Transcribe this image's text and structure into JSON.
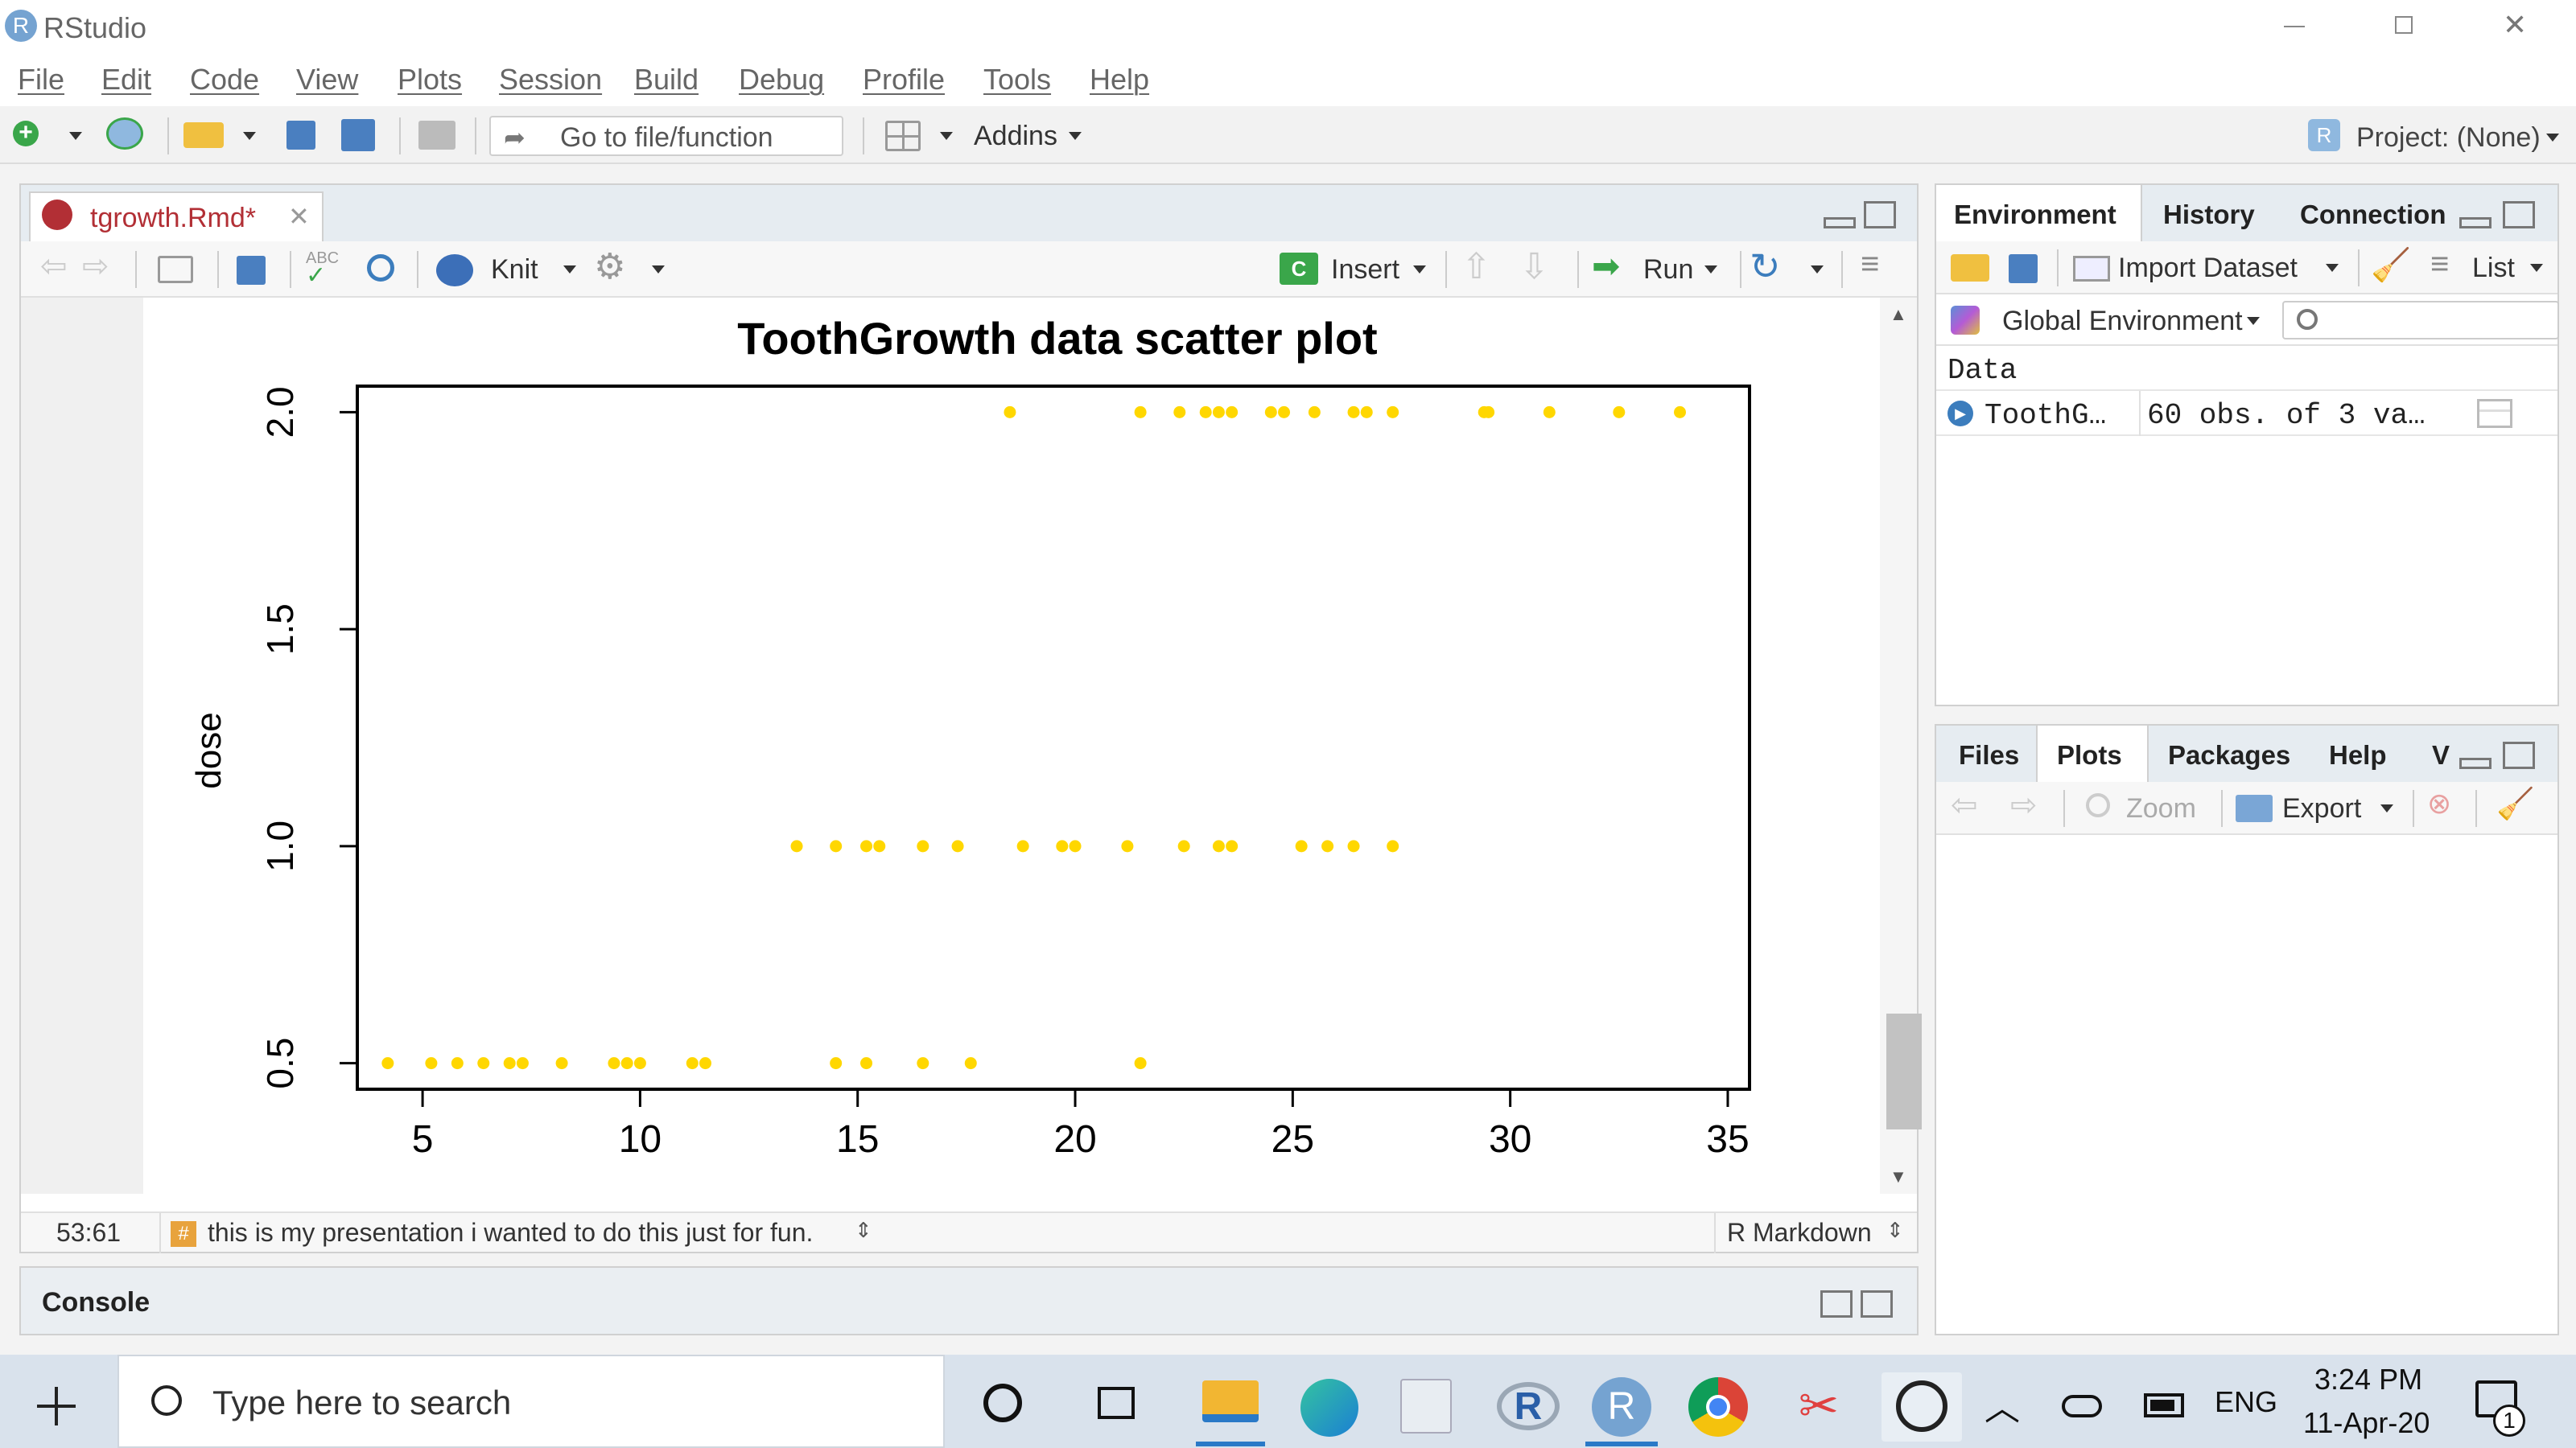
{
  "window": {
    "title": "RStudio"
  },
  "menu": [
    "File",
    "Edit",
    "Code",
    "View",
    "Plots",
    "Session",
    "Build",
    "Debug",
    "Profile",
    "Tools",
    "Help"
  ],
  "toolbar": {
    "goto_placeholder": "Go to file/function",
    "addins": "Addins",
    "project": "Project: (None)"
  },
  "editor": {
    "tab": "tgrowth.Rmd*",
    "knit": "Knit",
    "insert": "Insert",
    "run": "Run",
    "status_pos": "53:61",
    "status_chunk": "this is my presentation i wanted to do this just for fun.",
    "status_mode": "R Markdown"
  },
  "console": {
    "title": "Console"
  },
  "env_pane": {
    "tabs": [
      "Environment",
      "History",
      "Connection"
    ],
    "import": "Import Dataset",
    "list": "List",
    "scope": "Global Environment",
    "section": "Data",
    "row_name": "ToothG…",
    "row_value": "60 obs. of 3 va…"
  },
  "files_pane": {
    "tabs": [
      "Files",
      "Plots",
      "Packages",
      "Help",
      "V"
    ],
    "zoom": "Zoom",
    "export": "Export"
  },
  "taskbar": {
    "search": "Type here to search",
    "lang": "ENG",
    "time": "3:24 PM",
    "date": "11-Apr-20",
    "notif": "1"
  },
  "colors": {
    "point": "#ffd700",
    "accent": "#4a90d9"
  },
  "chart_data": {
    "type": "scatter",
    "title": "ToothGrowth data scatter plot",
    "xlabel": "",
    "ylabel": "dose",
    "xlim": [
      3.5,
      35.5
    ],
    "ylim": [
      0.44,
      2.06
    ],
    "xticks": [
      5,
      10,
      15,
      20,
      25,
      30,
      35
    ],
    "yticks": [
      0.5,
      1.0,
      1.5,
      2.0
    ],
    "grid": false,
    "series": [
      {
        "points": [
          [
            4.2,
            0.5
          ],
          [
            5.2,
            0.5
          ],
          [
            5.8,
            0.5
          ],
          [
            6.4,
            0.5
          ],
          [
            7.0,
            0.5
          ],
          [
            7.3,
            0.5
          ],
          [
            8.2,
            0.5
          ],
          [
            9.4,
            0.5
          ],
          [
            9.7,
            0.5
          ],
          [
            10.0,
            0.5
          ],
          [
            11.2,
            0.5
          ],
          [
            11.5,
            0.5
          ],
          [
            14.5,
            0.5
          ],
          [
            15.2,
            0.5
          ],
          [
            16.5,
            0.5
          ],
          [
            17.6,
            0.5
          ],
          [
            21.5,
            0.5
          ],
          [
            13.6,
            1.0
          ],
          [
            14.5,
            1.0
          ],
          [
            15.2,
            1.0
          ],
          [
            15.5,
            1.0
          ],
          [
            16.5,
            1.0
          ],
          [
            17.3,
            1.0
          ],
          [
            18.8,
            1.0
          ],
          [
            19.7,
            1.0
          ],
          [
            20.0,
            1.0
          ],
          [
            21.2,
            1.0
          ],
          [
            22.5,
            1.0
          ],
          [
            23.3,
            1.0
          ],
          [
            23.6,
            1.0
          ],
          [
            25.2,
            1.0
          ],
          [
            25.8,
            1.0
          ],
          [
            26.4,
            1.0
          ],
          [
            27.3,
            1.0
          ],
          [
            18.5,
            2.0
          ],
          [
            21.5,
            2.0
          ],
          [
            22.4,
            2.0
          ],
          [
            23.0,
            2.0
          ],
          [
            23.3,
            2.0
          ],
          [
            23.6,
            2.0
          ],
          [
            24.5,
            2.0
          ],
          [
            24.8,
            2.0
          ],
          [
            25.5,
            2.0
          ],
          [
            26.4,
            2.0
          ],
          [
            26.7,
            2.0
          ],
          [
            27.3,
            2.0
          ],
          [
            29.4,
            2.0
          ],
          [
            29.5,
            2.0
          ],
          [
            30.9,
            2.0
          ],
          [
            32.5,
            2.0
          ],
          [
            33.9,
            2.0
          ]
        ]
      }
    ]
  }
}
